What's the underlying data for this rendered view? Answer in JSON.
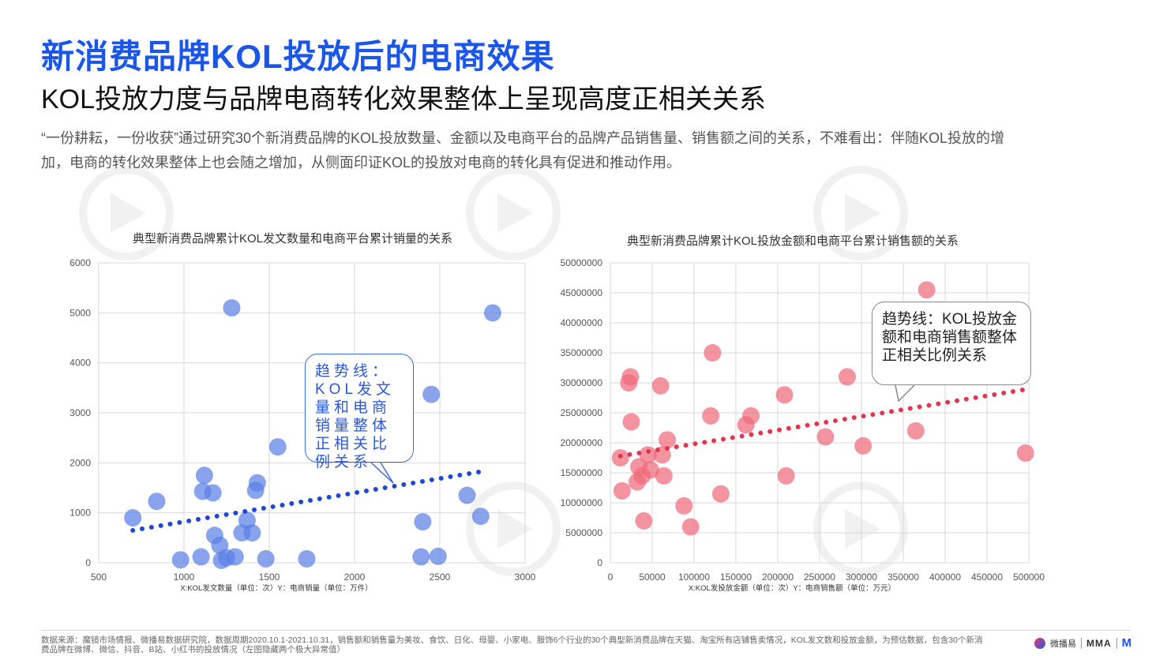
{
  "page": {
    "title": "新消费品牌KOL投放后的电商效果",
    "subtitle": "KOL投放力度与品牌电商转化效果整体上呈现高度正相关关系",
    "description": "“一份耕耘，一份收获”通过研究30个新消费品牌的KOL投放数量、金额以及电商平台的品牌产品销售量、销售额之间的关系，不难看出：伴随KOL投放的增加，电商的转化效果整体上也会随之增加，从侧面印证KOL的投放对电商的转化具有促进和推动作用。",
    "footnote": "数据来源：魔镜市场情报、微播易数据研究院，数据周期2020.10.1-2021.10.31，销售额和销售量为美妆、食饮、日化、母婴、小家电、服饰6个行业的30个典型新消费品牌在天猫、淘宝所有店铺售卖情况，KOL发文数和投放金额，为预估数据，包含30个新消费品牌在微博、微信、抖音、B站、小红书的投放情况（左图隐藏两个极大异常值）",
    "logos": {
      "weiboyi": "微播易",
      "mma": "MMA",
      "m": "M"
    }
  },
  "colors": {
    "title": "#1a56e8",
    "blue": "#5b7fe6",
    "blue_trend": "#1f47d6",
    "red": "#ee6b7c",
    "red_trend": "#e0374f",
    "grid": "#d9d9d9"
  },
  "chart_data": [
    {
      "type": "scatter",
      "title": "典型新消费品牌累计KOL发文数量和电商平台累计销量的关系",
      "xlabel": "X:KOL发文数量（单位：次）Y：电商销量（单位：万件）",
      "xlim": [
        500,
        3000
      ],
      "ylim": [
        0,
        6000
      ],
      "xticks": [
        500,
        1000,
        1500,
        2000,
        2500,
        3000
      ],
      "yticks": [
        0,
        1000,
        2000,
        3000,
        4000,
        5000,
        6000
      ],
      "points": [
        [
          700,
          900
        ],
        [
          840,
          1230
        ],
        [
          980,
          60
        ],
        [
          1100,
          120
        ],
        [
          1110,
          1430
        ],
        [
          1120,
          1750
        ],
        [
          1170,
          1400
        ],
        [
          1180,
          550
        ],
        [
          1210,
          350
        ],
        [
          1220,
          50
        ],
        [
          1250,
          100
        ],
        [
          1280,
          5100
        ],
        [
          1300,
          120
        ],
        [
          1340,
          600
        ],
        [
          1370,
          850
        ],
        [
          1400,
          600
        ],
        [
          1420,
          1450
        ],
        [
          1430,
          1600
        ],
        [
          1480,
          80
        ],
        [
          1550,
          2320
        ],
        [
          1720,
          80
        ],
        [
          2390,
          120
        ],
        [
          2400,
          820
        ],
        [
          2450,
          3370
        ],
        [
          2490,
          130
        ],
        [
          2660,
          1350
        ],
        [
          2740,
          930
        ],
        [
          2810,
          5000
        ]
      ],
      "trendline": {
        "from": [
          700,
          650
        ],
        "to": [
          2750,
          1830
        ]
      },
      "callout": "趋势线：KOL发文量和电商销量整体正相关比例关系"
    },
    {
      "type": "scatter",
      "title": "典型新消费品牌累计KOL投放金额和电商平台累计销售额的关系",
      "xlabel": "X:KOL发投放金额（单位：次）Y：电商销售额（单位：万元）",
      "xlim": [
        0,
        500000
      ],
      "ylim": [
        0,
        50000000
      ],
      "xticks": [
        0,
        50000,
        100000,
        150000,
        200000,
        250000,
        300000,
        350000,
        400000,
        450000,
        500000
      ],
      "yticks": [
        0,
        5000000,
        10000000,
        15000000,
        20000000,
        25000000,
        30000000,
        35000000,
        40000000,
        45000000,
        50000000
      ],
      "points": [
        [
          12000,
          17500000
        ],
        [
          14000,
          12000000
        ],
        [
          22000,
          30000000
        ],
        [
          24000,
          31000000
        ],
        [
          25000,
          23500000
        ],
        [
          32000,
          13500000
        ],
        [
          34000,
          16000000
        ],
        [
          38000,
          14500000
        ],
        [
          40000,
          7000000
        ],
        [
          45000,
          18000000
        ],
        [
          48000,
          15500000
        ],
        [
          60000,
          29500000
        ],
        [
          62000,
          18000000
        ],
        [
          64000,
          14500000
        ],
        [
          68000,
          20500000
        ],
        [
          88000,
          9500000
        ],
        [
          96000,
          6000000
        ],
        [
          120000,
          24500000
        ],
        [
          122000,
          35000000
        ],
        [
          132000,
          11500000
        ],
        [
          162000,
          23000000
        ],
        [
          168000,
          24500000
        ],
        [
          208000,
          28000000
        ],
        [
          210000,
          14500000
        ],
        [
          257000,
          21000000
        ],
        [
          283000,
          31000000
        ],
        [
          302000,
          19500000
        ],
        [
          365000,
          22000000
        ],
        [
          378000,
          45500000
        ],
        [
          496000,
          18300000
        ]
      ],
      "trendline": {
        "from": [
          12000,
          17800000
        ],
        "to": [
          496000,
          28900000
        ]
      },
      "callout": "趋势线：KOL投放金额和电商销售额整体正相关比例关系"
    }
  ]
}
